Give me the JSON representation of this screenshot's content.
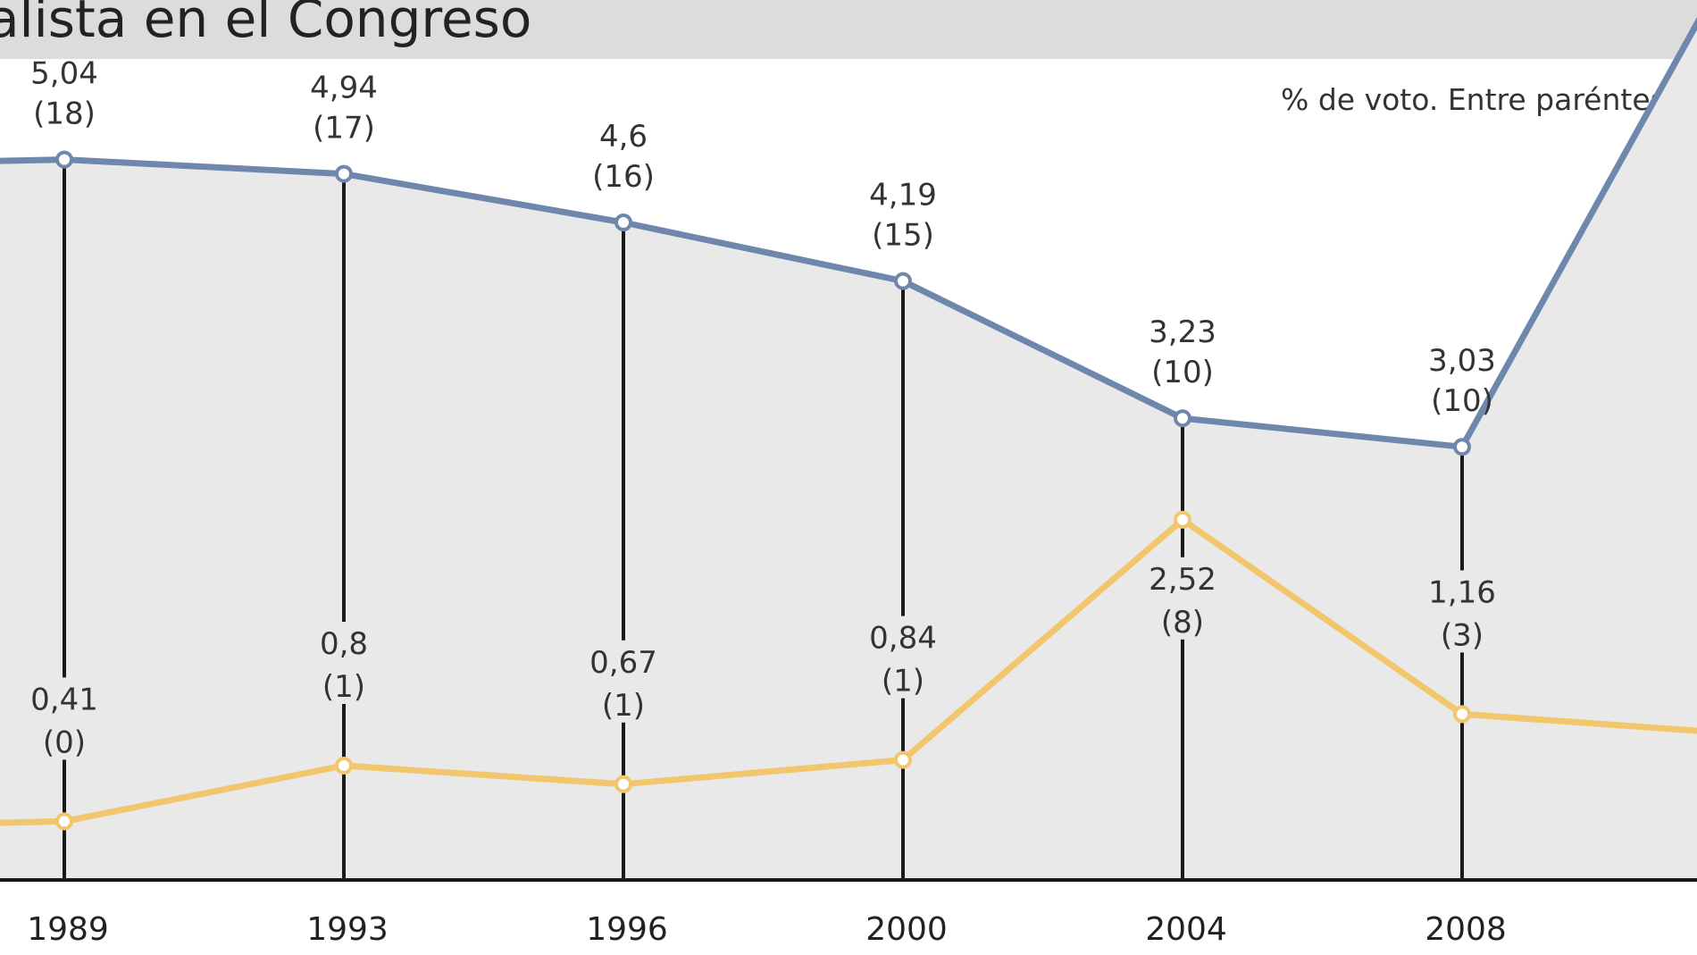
{
  "title": "alista en el Congreso",
  "subtitle": "% de voto. Entre paréntesis",
  "colors": {
    "series_blue": "#6f87ad",
    "series_yellow": "#f2c66c",
    "plot_area": "#e9e9ea",
    "title_bar": "#dcdcdc",
    "axis": "#1a1a1a"
  },
  "chart_data": {
    "type": "line",
    "categories": [
      "1989",
      "1993",
      "1996",
      "2000",
      "2004",
      "2008"
    ],
    "ylim": [
      0,
      5.5
    ],
    "series": [
      {
        "color": "#6f87ad",
        "values": [
          5.04,
          4.94,
          4.6,
          4.19,
          3.23,
          3.03
        ],
        "value_labels": [
          "5,04",
          "4,94",
          "4,6",
          "4,19",
          "3,23",
          "3,03"
        ],
        "seat_labels": [
          "(18)",
          "(17)",
          "(16)",
          "(15)",
          "(10)",
          "(10)"
        ]
      },
      {
        "color": "#f2c66c",
        "values": [
          0.41,
          0.8,
          0.67,
          0.84,
          2.52,
          1.16
        ],
        "value_labels": [
          "0,41",
          "0,8",
          "0,67",
          "0,84",
          "2,52",
          "1,16"
        ],
        "seat_labels": [
          "(0)",
          "(1)",
          "(1)",
          "(1)",
          "(8)",
          "(3)"
        ]
      }
    ]
  }
}
